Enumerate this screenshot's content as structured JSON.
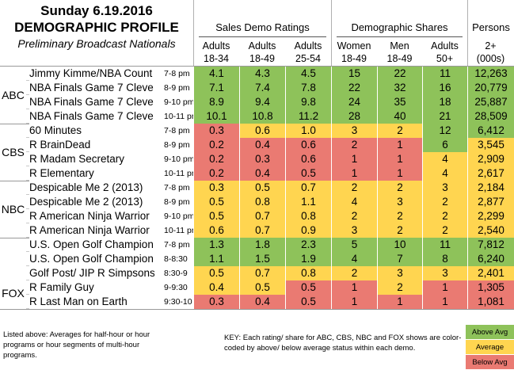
{
  "title": {
    "line1": "Sunday 6.19.2016",
    "line2": "DEMOGRAPHIC PROFILE",
    "line3": "Preliminary Broadcast Nationals"
  },
  "groups": {
    "sales": "Sales Demo Ratings",
    "shares": "Demographic Shares",
    "persons_a": "Persons",
    "persons_b": "2+",
    "persons_c": "(000s)"
  },
  "columns": [
    {
      "a": "Adults",
      "b": "18-34"
    },
    {
      "a": "Adults",
      "b": "18-49"
    },
    {
      "a": "Adults",
      "b": "25-54"
    },
    {
      "a": "Women",
      "b": "18-49"
    },
    {
      "a": "Men",
      "b": "18-49"
    },
    {
      "a": "Adults",
      "b": "50+"
    }
  ],
  "networks": [
    "ABC",
    "CBS",
    "NBC",
    "FOX"
  ],
  "rows": [
    {
      "prog": "Jimmy Kimme/NBA Count",
      "slot": "7-8 pm",
      "v": [
        "4.1",
        "4.3",
        "4.5",
        "15",
        "22",
        "11",
        "12,263"
      ],
      "c": [
        "g",
        "g",
        "g",
        "g",
        "g",
        "g",
        "g"
      ]
    },
    {
      "prog": "NBA Finals Game 7 Cleve",
      "slot": "8-9 pm",
      "v": [
        "7.1",
        "7.4",
        "7.8",
        "22",
        "32",
        "16",
        "20,779"
      ],
      "c": [
        "g",
        "g",
        "g",
        "g",
        "g",
        "g",
        "g"
      ]
    },
    {
      "prog": "NBA Finals Game 7 Cleve",
      "slot": "9-10 pm",
      "v": [
        "8.9",
        "9.4",
        "9.8",
        "24",
        "35",
        "18",
        "25,887"
      ],
      "c": [
        "g",
        "g",
        "g",
        "g",
        "g",
        "g",
        "g"
      ]
    },
    {
      "prog": "NBA Finals Game 7 Cleve",
      "slot": "10-11 pm",
      "v": [
        "10.1",
        "10.8",
        "11.2",
        "28",
        "40",
        "21",
        "28,509"
      ],
      "c": [
        "g",
        "g",
        "g",
        "g",
        "g",
        "g",
        "g"
      ]
    },
    {
      "prog": "60 Minutes",
      "slot": "7-8 pm",
      "v": [
        "0.3",
        "0.6",
        "1.0",
        "3",
        "2",
        "12",
        "6,412"
      ],
      "c": [
        "r",
        "y",
        "y",
        "y",
        "y",
        "g",
        "g"
      ]
    },
    {
      "prog": "R BrainDead",
      "slot": "8-9 pm",
      "v": [
        "0.2",
        "0.4",
        "0.6",
        "2",
        "1",
        "6",
        "3,545"
      ],
      "c": [
        "r",
        "r",
        "r",
        "r",
        "r",
        "g",
        "y"
      ]
    },
    {
      "prog": "R Madam Secretary",
      "slot": "9-10 pm",
      "v": [
        "0.2",
        "0.3",
        "0.6",
        "1",
        "1",
        "4",
        "2,909"
      ],
      "c": [
        "r",
        "r",
        "r",
        "r",
        "r",
        "y",
        "y"
      ]
    },
    {
      "prog": "R Elementary",
      "slot": "10-11 pm",
      "v": [
        "0.2",
        "0.4",
        "0.5",
        "1",
        "1",
        "4",
        "2,617"
      ],
      "c": [
        "r",
        "r",
        "r",
        "r",
        "r",
        "y",
        "y"
      ]
    },
    {
      "prog": "Despicable Me 2 (2013)",
      "slot": "7-8 pm",
      "v": [
        "0.3",
        "0.5",
        "0.7",
        "2",
        "2",
        "3",
        "2,184"
      ],
      "c": [
        "y",
        "y",
        "y",
        "y",
        "y",
        "y",
        "y"
      ]
    },
    {
      "prog": "Despicable Me 2 (2013)",
      "slot": "8-9 pm",
      "v": [
        "0.5",
        "0.8",
        "1.1",
        "4",
        "3",
        "2",
        "2,877"
      ],
      "c": [
        "y",
        "y",
        "y",
        "y",
        "y",
        "y",
        "y"
      ]
    },
    {
      "prog": "R American Ninja Warrior",
      "slot": "9-10 pm",
      "v": [
        "0.5",
        "0.7",
        "0.8",
        "2",
        "2",
        "2",
        "2,299"
      ],
      "c": [
        "y",
        "y",
        "y",
        "y",
        "y",
        "y",
        "y"
      ]
    },
    {
      "prog": "R American Ninja Warrior",
      "slot": "10-11 pm",
      "v": [
        "0.6",
        "0.7",
        "0.9",
        "3",
        "2",
        "2",
        "2,540"
      ],
      "c": [
        "y",
        "y",
        "y",
        "y",
        "y",
        "y",
        "y"
      ]
    },
    {
      "prog": "U.S. Open Golf Champion",
      "slot": "7-8 pm",
      "v": [
        "1.3",
        "1.8",
        "2.3",
        "5",
        "10",
        "11",
        "7,812"
      ],
      "c": [
        "g",
        "g",
        "g",
        "g",
        "g",
        "g",
        "g"
      ]
    },
    {
      "prog": "U.S. Open Golf Champion",
      "slot": "8-8:30",
      "v": [
        "1.1",
        "1.5",
        "1.9",
        "4",
        "7",
        "8",
        "6,240"
      ],
      "c": [
        "g",
        "g",
        "g",
        "g",
        "g",
        "g",
        "g"
      ]
    },
    {
      "prog": "Golf Post/ JIP R Simpsons",
      "slot": "8:30-9",
      "v": [
        "0.5",
        "0.7",
        "0.8",
        "2",
        "3",
        "3",
        "2,401"
      ],
      "c": [
        "y",
        "y",
        "y",
        "y",
        "y",
        "y",
        "y"
      ]
    },
    {
      "prog": "R Family Guy",
      "slot": "9-9:30",
      "v": [
        "0.4",
        "0.5",
        "0.5",
        "1",
        "2",
        "1",
        "1,305"
      ],
      "c": [
        "y",
        "y",
        "r",
        "r",
        "y",
        "r",
        "r"
      ]
    },
    {
      "prog": "R Last Man on Earth",
      "slot": "9:30-10",
      "v": [
        "0.3",
        "0.4",
        "0.5",
        "1",
        "1",
        "1",
        "1,081"
      ],
      "c": [
        "r",
        "r",
        "r",
        "r",
        "r",
        "r",
        "r"
      ]
    }
  ],
  "footer": {
    "left": "Listed above: Averages for half-hour or hour programs or hour segments of multi-hour programs.",
    "mid": "KEY: Each rating/ share for ABC, CBS, NBC and FOX shows are color-coded by above/ below average status within each demo."
  },
  "legend": {
    "above": "Above Avg",
    "average": "Average",
    "below": "Below Avg"
  },
  "colors": {
    "above": "#8ec25a",
    "average": "#ffd550",
    "below": "#ea7a72"
  }
}
